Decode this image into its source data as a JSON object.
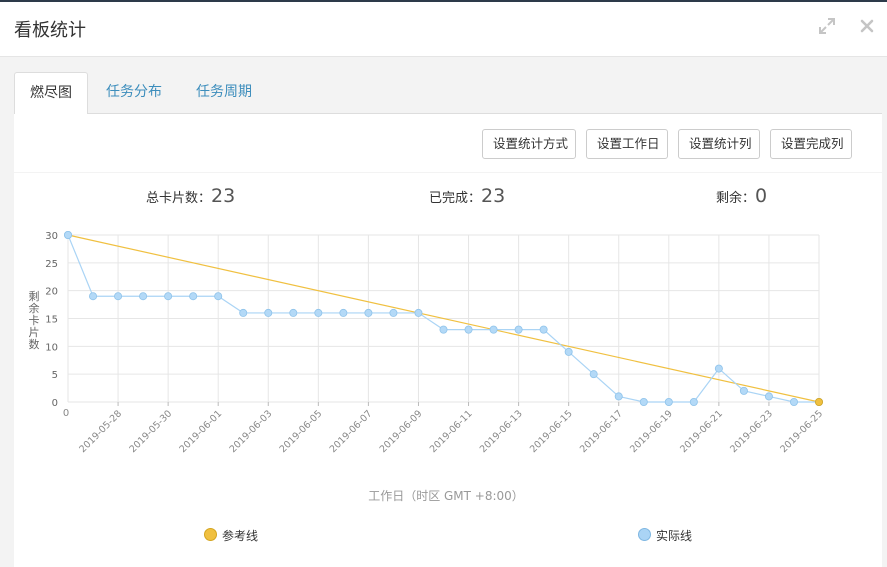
{
  "dialog": {
    "title": "看板统计",
    "expand_icon": "expand-icon",
    "close_icon": "close-icon"
  },
  "tabs": [
    {
      "label": "燃尽图",
      "active": true
    },
    {
      "label": "任务分布",
      "active": false
    },
    {
      "label": "任务周期",
      "active": false
    }
  ],
  "toolbar": {
    "buttons": [
      "设置统计方式",
      "设置工作日",
      "设置统计列",
      "设置完成列"
    ]
  },
  "stats": {
    "total_label": "总卡片数：",
    "total_value": "23",
    "done_label": "已完成：",
    "done_value": "23",
    "remain_label": "剩余：",
    "remain_value": "0"
  },
  "colors": {
    "reference": "#f0c040",
    "actual": "#aad4f5",
    "tab_link": "#3c8dbc"
  },
  "chart_data": {
    "type": "line",
    "xlabel": "工作日（时区 GMT +8:00）",
    "ylabel": "剩余卡片数",
    "ylim": [
      0,
      30
    ],
    "yticks": [
      0,
      5,
      10,
      15,
      20,
      25,
      30
    ],
    "x_first_label": "0",
    "x_tick_labels": [
      "2019-05-28",
      "2019-05-30",
      "2019-06-01",
      "2019-06-03",
      "2019-06-05",
      "2019-06-07",
      "2019-06-09",
      "2019-06-11",
      "2019-06-13",
      "2019-06-15",
      "2019-06-17",
      "2019-06-19",
      "2019-06-21",
      "2019-06-23",
      "2019-06-25"
    ],
    "x_steps": 30,
    "grid": true,
    "legend_placement": "bottom",
    "series": [
      {
        "name": "参考线",
        "points": [
          [
            0,
            30
          ],
          [
            30,
            0
          ]
        ]
      },
      {
        "name": "实际线",
        "values": [
          30,
          19,
          19,
          19,
          19,
          19,
          19,
          16,
          16,
          16,
          16,
          16,
          16,
          16,
          16,
          13,
          13,
          13,
          13,
          13,
          9,
          5,
          1,
          0,
          0,
          0,
          6,
          2,
          1,
          0,
          0
        ]
      }
    ]
  }
}
